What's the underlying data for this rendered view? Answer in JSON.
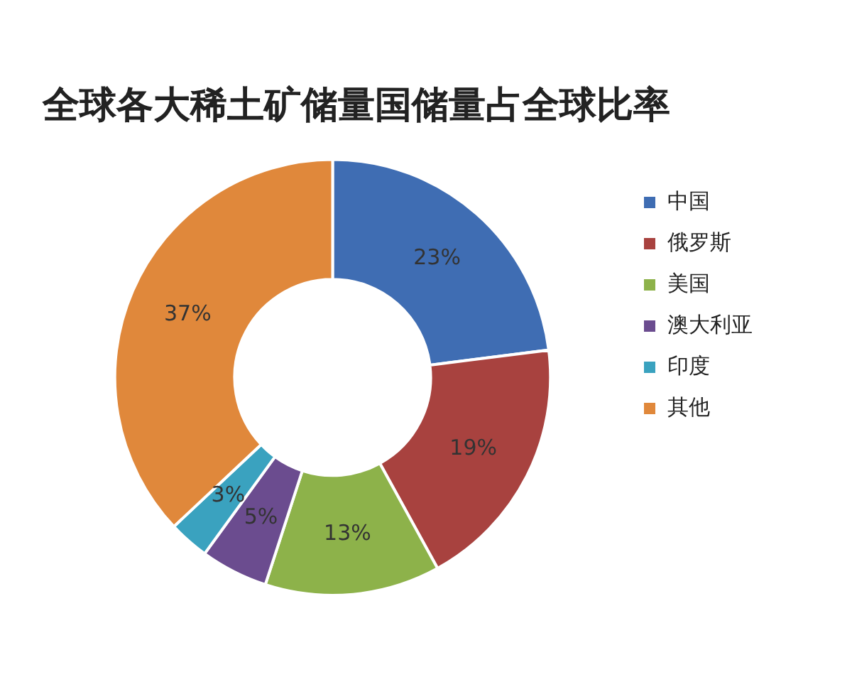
{
  "chart_data": {
    "type": "donut",
    "title": "全球各大稀土矿储量国储量占全球比率",
    "categories": [
      "中国",
      "俄罗斯",
      "美国",
      "澳大利亚",
      "印度",
      "其他"
    ],
    "values": [
      23,
      19,
      13,
      5,
      3,
      37
    ],
    "value_labels": [
      "23%",
      "19%",
      "13%",
      "5%",
      "3%",
      "37%"
    ],
    "colors": [
      "#3f6db3",
      "#a8423f",
      "#8db24a",
      "#6b4c8f",
      "#3aa2bf",
      "#e0883b"
    ],
    "legend": "right"
  }
}
